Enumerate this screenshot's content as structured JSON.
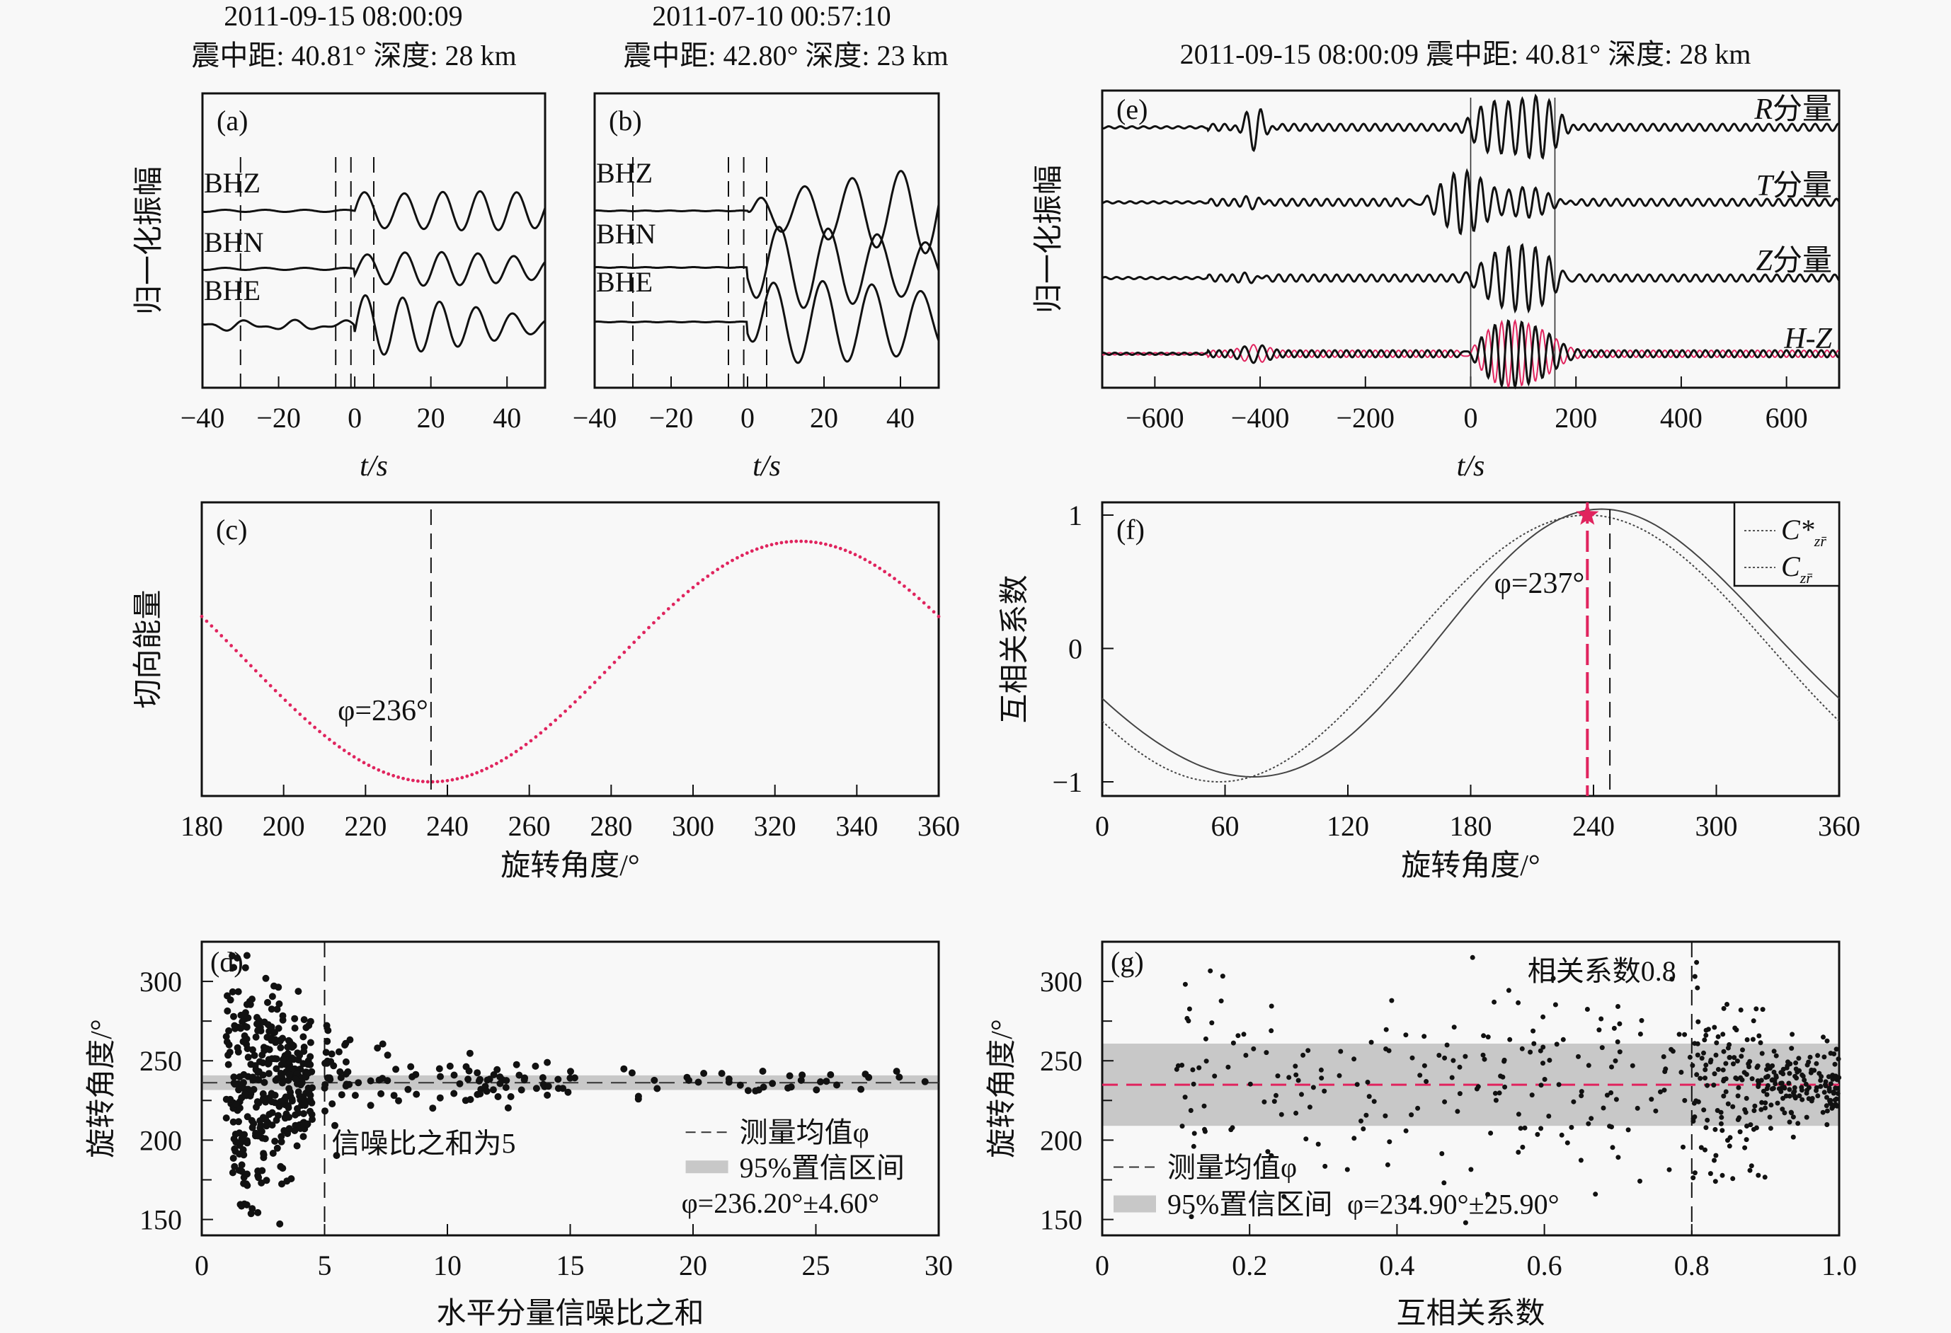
{
  "panels_text": {
    "a_title_line1": "2011-09-15 08:00:09",
    "a_title_line2": "震中距: 40.81°  深度: 28 km",
    "b_title_line1": "2011-07-10 00:57:10",
    "b_title_line2": "震中距: 42.80°  深度: 23 km",
    "e_title": "2011-09-15 08:00:09 震中距: 40.81°  深度: 28 km"
  },
  "chart_data": [
    {
      "id": "a",
      "type": "line",
      "panel_label": "(a)",
      "ylabel": "归一化振幅",
      "xlabel": "t/s",
      "xlim": [
        -40,
        50
      ],
      "xticks": [
        -40,
        -20,
        0,
        20,
        40
      ],
      "xtick_labels": [
        "−40",
        "−20",
        "0",
        "20",
        "40"
      ],
      "series": [
        {
          "name": "BHZ",
          "label": "BHZ"
        },
        {
          "name": "BHN",
          "label": "BHN"
        },
        {
          "name": "BHE",
          "label": "BHE"
        }
      ],
      "vlines": [
        -30,
        -5,
        -1,
        5
      ]
    },
    {
      "id": "b",
      "type": "line",
      "panel_label": "(b)",
      "xlabel": "t/s",
      "xlim": [
        -40,
        50
      ],
      "xticks": [
        -40,
        -20,
        0,
        20,
        40
      ],
      "xtick_labels": [
        "−40",
        "−20",
        "0",
        "20",
        "40"
      ],
      "series": [
        {
          "name": "BHZ",
          "label": "BHZ"
        },
        {
          "name": "BHN",
          "label": "BHN"
        },
        {
          "name": "BHE",
          "label": "BHE"
        }
      ],
      "vlines": [
        -30,
        -5,
        -1,
        5
      ]
    },
    {
      "id": "e",
      "type": "line",
      "panel_label": "(e)",
      "ylabel": "归一化振幅",
      "xlabel": "t/s",
      "xlim": [
        -700,
        700
      ],
      "xticks": [
        -600,
        -400,
        -200,
        0,
        200,
        400,
        600
      ],
      "xtick_labels": [
        "−600",
        "−400",
        "−200",
        "0",
        "200",
        "400",
        "600"
      ],
      "series": [
        {
          "name": "R",
          "label_italic": "R",
          "label_suffix": "分量"
        },
        {
          "name": "T",
          "label_italic": "T",
          "label_suffix": "分量"
        },
        {
          "name": "Z",
          "label_italic": "Z",
          "label_suffix": "分量"
        },
        {
          "name": "H-Z",
          "label_italic": "H-Z",
          "label_suffix": ""
        }
      ],
      "vlines": [
        0,
        160
      ],
      "overlay_color": "#e0245e"
    },
    {
      "id": "c",
      "type": "line",
      "panel_label": "(c)",
      "ylabel": "切向能量",
      "xlabel": "旋转角度/°",
      "xlim": [
        180,
        360
      ],
      "xticks": [
        180,
        200,
        220,
        240,
        260,
        280,
        300,
        320,
        340,
        360
      ],
      "xtick_labels": [
        "180",
        "200",
        "220",
        "240",
        "260",
        "280",
        "300",
        "320",
        "340",
        "360"
      ],
      "curve": {
        "min_at": 236,
        "max_at": 326,
        "normalized_values_at_ends": {
          "180": 0.64,
          "360": 0.64
        }
      },
      "vline": 236,
      "annotation": "φ=236°",
      "color": "#e0245e"
    },
    {
      "id": "f",
      "type": "line",
      "panel_label": "(f)",
      "ylabel": "互相关系数",
      "xlabel": "旋转角度/°",
      "xlim": [
        0,
        360
      ],
      "ylim": [
        -1.1,
        1.0
      ],
      "xticks": [
        0,
        60,
        120,
        180,
        240,
        300,
        360
      ],
      "xtick_labels": [
        "0",
        "60",
        "120",
        "180",
        "240",
        "300",
        "360"
      ],
      "yticks": [
        -1,
        0,
        1
      ],
      "ytick_labels": [
        "−1",
        "0",
        "1"
      ],
      "series": [
        {
          "name": "C*zr",
          "legend": "C*",
          "subscript": "zr̄",
          "peak_at": 237
        },
        {
          "name": "Czr",
          "legend": "C",
          "subscript": "zr̄",
          "peak_at": 248
        }
      ],
      "vlines": [
        237,
        248
      ],
      "star_at": [
        237,
        1.0
      ],
      "annotation": "φ=237°",
      "star_color": "#e0245e"
    },
    {
      "id": "d",
      "type": "scatter",
      "panel_label": "(d)",
      "ylabel": "旋转角度/°",
      "xlabel": "水平分量信噪比之和",
      "xlim": [
        0,
        30
      ],
      "ylim": [
        140,
        325
      ],
      "xticks": [
        0,
        5,
        10,
        15,
        20,
        25,
        30
      ],
      "xtick_labels": [
        "0",
        "5",
        "10",
        "15",
        "20",
        "25",
        "30"
      ],
      "yticks": [
        150,
        200,
        250,
        300
      ],
      "ytick_labels": [
        "150",
        "200",
        "250",
        "300"
      ],
      "mean": 236.2,
      "ci_halfwidth": 4.6,
      "vline": 5,
      "vline_label": "信噪比之和为5",
      "legend": [
        "测量均值φ",
        "95%置信区间"
      ],
      "result_text": "φ=236.20°±4.60°"
    },
    {
      "id": "g",
      "type": "scatter",
      "panel_label": "(g)",
      "ylabel": "旋转角度/°",
      "xlabel": "互相关系数",
      "xlim": [
        0,
        1.0
      ],
      "ylim": [
        140,
        325
      ],
      "xticks": [
        0,
        0.2,
        0.4,
        0.6,
        0.8,
        1.0
      ],
      "xtick_labels": [
        "0",
        "0.2",
        "0.4",
        "0.6",
        "0.8",
        "1.0"
      ],
      "yticks": [
        150,
        200,
        250,
        300
      ],
      "ytick_labels": [
        "150",
        "200",
        "250",
        "300"
      ],
      "mean": 234.9,
      "ci_halfwidth": 25.9,
      "vline": 0.8,
      "vline_label": "相关系数0.8",
      "legend": [
        "测量均值φ",
        "95%置信区间"
      ],
      "result_text": "φ=234.90°±25.90°",
      "mean_line_color": "#e0245e"
    }
  ]
}
